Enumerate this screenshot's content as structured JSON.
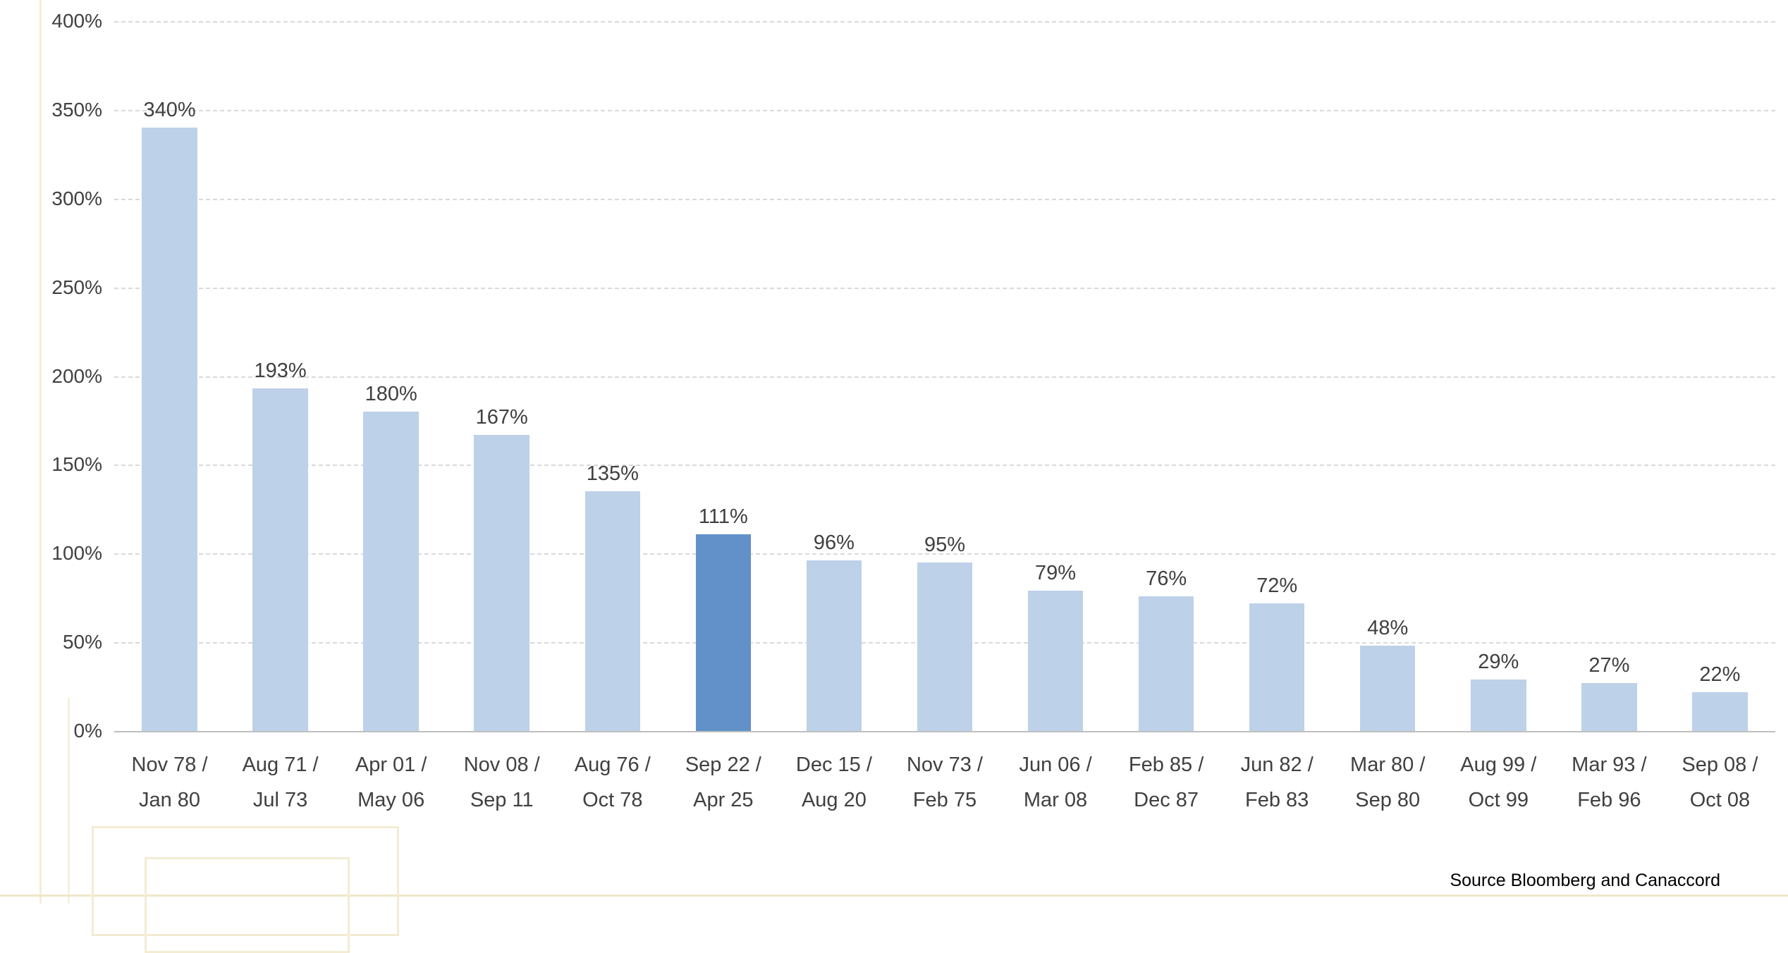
{
  "chart_data": {
    "type": "bar",
    "categories": [
      {
        "line1": "Nov 78 /",
        "line2": "Jan 80"
      },
      {
        "line1": "Aug 71 /",
        "line2": "Jul 73"
      },
      {
        "line1": "Apr 01 /",
        "line2": "May 06"
      },
      {
        "line1": "Nov 08 /",
        "line2": "Sep 11"
      },
      {
        "line1": "Aug 76 /",
        "line2": "Oct 78"
      },
      {
        "line1": "Sep 22 /",
        "line2": "Apr 25"
      },
      {
        "line1": "Dec 15 /",
        "line2": "Aug 20"
      },
      {
        "line1": "Nov 73 /",
        "line2": "Feb 75"
      },
      {
        "line1": "Jun 06 /",
        "line2": "Mar 08"
      },
      {
        "line1": "Feb 85 /",
        "line2": "Dec 87"
      },
      {
        "line1": "Jun 82 /",
        "line2": "Feb 83"
      },
      {
        "line1": "Mar 80 /",
        "line2": "Sep 80"
      },
      {
        "line1": "Aug 99 /",
        "line2": "Oct 99"
      },
      {
        "line1": "Mar 93 /",
        "line2": "Feb 96"
      },
      {
        "line1": "Sep 08 /",
        "line2": "Oct 08"
      }
    ],
    "values": [
      340,
      193,
      180,
      167,
      135,
      111,
      96,
      95,
      79,
      76,
      72,
      48,
      29,
      27,
      22
    ],
    "value_labels": [
      "340%",
      "193%",
      "180%",
      "167%",
      "135%",
      "111%",
      "96%",
      "95%",
      "79%",
      "76%",
      "72%",
      "48%",
      "29%",
      "27%",
      "22%"
    ],
    "highlight_index": 5,
    "ylim": [
      0,
      400
    ],
    "ytick_step": 50,
    "yticks": [
      "0%",
      "50%",
      "100%",
      "150%",
      "200%",
      "250%",
      "300%",
      "350%",
      "400%"
    ],
    "grid": true,
    "legend": null,
    "title": "",
    "xlabel": "",
    "ylabel": "",
    "bar_color": "#bdd1e8",
    "highlight_color": "#6191c8",
    "source": "Source Bloomberg and Canaccord"
  }
}
